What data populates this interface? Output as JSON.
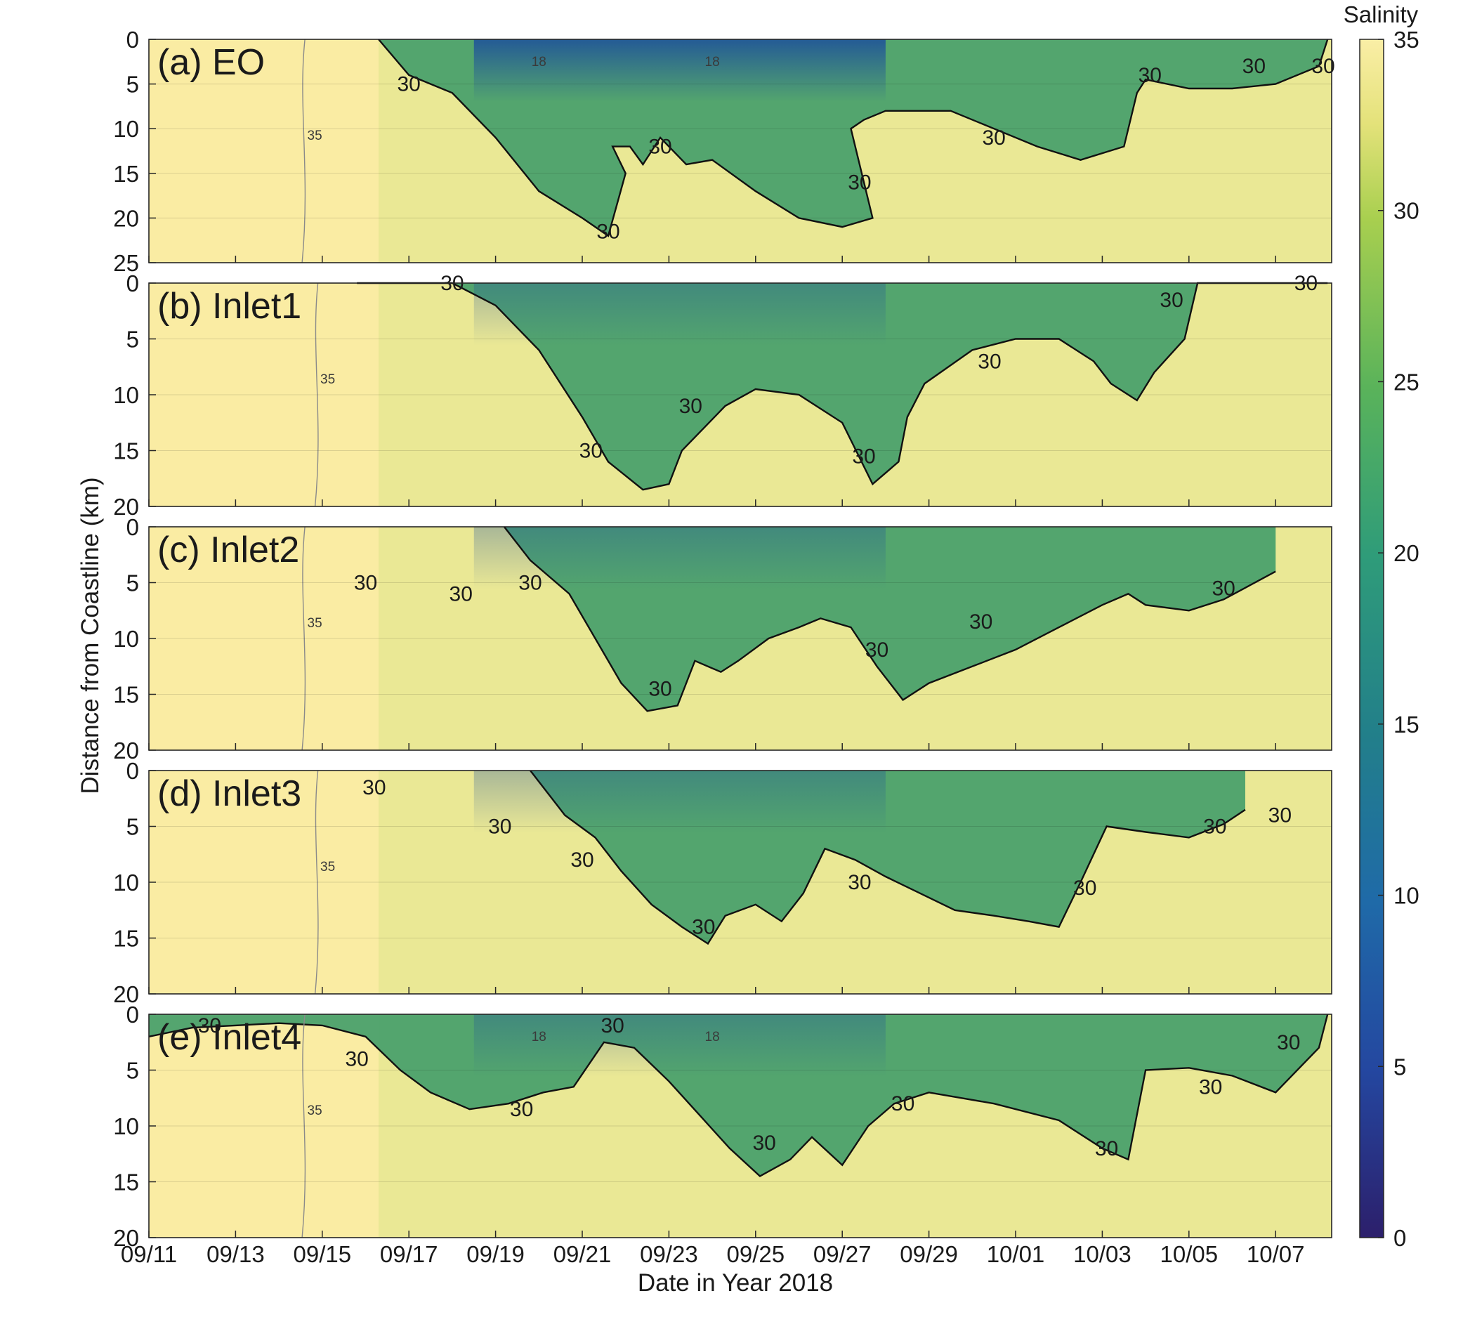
{
  "chart_data": {
    "type": "heatmap",
    "xlabel": "Date in Year 2018",
    "ylabel": "Distance from Coastline (km)",
    "x_ticks": [
      "09/11",
      "09/13",
      "09/15",
      "09/17",
      "09/19",
      "09/21",
      "09/23",
      "09/25",
      "09/27",
      "09/29",
      "10/01",
      "10/03",
      "10/05",
      "10/07"
    ],
    "x_range_days": [
      0,
      27.2
    ],
    "colorbar": {
      "title": "Salinity",
      "range": [
        0,
        35
      ],
      "ticks": [
        "0",
        "5",
        "10",
        "15",
        "20",
        "25",
        "30",
        "35"
      ],
      "colormap": "parula-like",
      "colors": [
        "#2c1f6b",
        "#2447a0",
        "#1f6aa8",
        "#227f8a",
        "#2f9c79",
        "#5ab35a",
        "#a8cf4f",
        "#e4e27a",
        "#faeea6"
      ]
    },
    "contour_levels": [
      "18",
      "30",
      "35"
    ],
    "panels": [
      {
        "title": "(a) EO",
        "ylim": [
          0,
          25
        ],
        "yticks": [
          "0",
          "5",
          "10",
          "15",
          "20",
          "25"
        ],
        "contour30_depth_by_day": [
          [
            5.3,
            0
          ],
          [
            6,
            4
          ],
          [
            7,
            6
          ],
          [
            8,
            11
          ],
          [
            9,
            17
          ],
          [
            10,
            20
          ],
          [
            10.6,
            22
          ],
          [
            11,
            15
          ],
          [
            10.7,
            12
          ],
          [
            11.1,
            12
          ],
          [
            11.4,
            14
          ],
          [
            11.8,
            11
          ],
          [
            12.4,
            14
          ],
          [
            13,
            13.5
          ],
          [
            14,
            17
          ],
          [
            15,
            20
          ],
          [
            16,
            21
          ],
          [
            16.7,
            20
          ],
          [
            16.2,
            10
          ],
          [
            16.5,
            9
          ],
          [
            17,
            8
          ],
          [
            18.5,
            8
          ],
          [
            19.5,
            10
          ],
          [
            20.5,
            12
          ],
          [
            21.5,
            13.5
          ],
          [
            22.5,
            12
          ],
          [
            22.8,
            6
          ],
          [
            23,
            4.5
          ],
          [
            24,
            5.5
          ],
          [
            25,
            5.5
          ],
          [
            26,
            5
          ],
          [
            27,
            3
          ],
          [
            27.2,
            0
          ]
        ]
      },
      {
        "title": "(b) Inlet1",
        "ylim": [
          0,
          20
        ],
        "yticks": [
          "0",
          "5",
          "10",
          "15",
          "20"
        ],
        "contour30_depth_by_day": [
          [
            4.8,
            0
          ],
          [
            7,
            0
          ],
          [
            8,
            2
          ],
          [
            9,
            6
          ],
          [
            10,
            12
          ],
          [
            10.6,
            16
          ],
          [
            11.4,
            18.5
          ],
          [
            12,
            18
          ],
          [
            12.3,
            15
          ],
          [
            12.8,
            13
          ],
          [
            13.3,
            11
          ],
          [
            14,
            9.5
          ],
          [
            15,
            10
          ],
          [
            16,
            12.5
          ],
          [
            16.7,
            18
          ],
          [
            17.3,
            16
          ],
          [
            17.5,
            12
          ],
          [
            17.9,
            9
          ],
          [
            19,
            6
          ],
          [
            20,
            5
          ],
          [
            21,
            5
          ],
          [
            21.8,
            7
          ],
          [
            22.2,
            9
          ],
          [
            22.8,
            10.5
          ],
          [
            23.2,
            8
          ],
          [
            23.9,
            5
          ],
          [
            24.2,
            0
          ],
          [
            27.2,
            0
          ]
        ]
      },
      {
        "title": "(c) Inlet2",
        "ylim": [
          0,
          20
        ],
        "yticks": [
          "0",
          "5",
          "10",
          "15",
          "20"
        ],
        "contour30_depth_by_day": [
          [
            8.2,
            0
          ],
          [
            8.8,
            3
          ],
          [
            9.7,
            6
          ],
          [
            10.3,
            10
          ],
          [
            10.9,
            14
          ],
          [
            11.5,
            16.5
          ],
          [
            12.2,
            16
          ],
          [
            12.6,
            12
          ],
          [
            13.2,
            13
          ],
          [
            13.6,
            12
          ],
          [
            14.3,
            10
          ],
          [
            15,
            9
          ],
          [
            15.5,
            8.2
          ],
          [
            16.2,
            9
          ],
          [
            16.8,
            12.5
          ],
          [
            17.4,
            15.5
          ],
          [
            18,
            14
          ],
          [
            19,
            12.5
          ],
          [
            20,
            11
          ],
          [
            21,
            9
          ],
          [
            22,
            7
          ],
          [
            22.6,
            6
          ],
          [
            23,
            7
          ],
          [
            24,
            7.5
          ],
          [
            24.8,
            6.5
          ],
          [
            26,
            4
          ]
        ]
      },
      {
        "title": "(d) Inlet3",
        "ylim": [
          0,
          20
        ],
        "yticks": [
          "0",
          "5",
          "10",
          "15",
          "20"
        ],
        "contour30_depth_by_day": [
          [
            8.8,
            0
          ],
          [
            9.6,
            4
          ],
          [
            10.3,
            6
          ],
          [
            10.9,
            9
          ],
          [
            11.6,
            12
          ],
          [
            12.3,
            14
          ],
          [
            12.9,
            15.5
          ],
          [
            13.3,
            13
          ],
          [
            14,
            12
          ],
          [
            14.6,
            13.5
          ],
          [
            15.1,
            11
          ],
          [
            15.6,
            7
          ],
          [
            16.3,
            8
          ],
          [
            17,
            9.5
          ],
          [
            17.8,
            11
          ],
          [
            18.6,
            12.5
          ],
          [
            19.5,
            13
          ],
          [
            20.3,
            13.5
          ],
          [
            21,
            14
          ],
          [
            21.5,
            10
          ],
          [
            22.1,
            5
          ],
          [
            23,
            5.5
          ],
          [
            24,
            6
          ],
          [
            24.8,
            4.8
          ],
          [
            25.3,
            3.5
          ]
        ]
      },
      {
        "title": "(e) Inlet4",
        "ylim": [
          0,
          20
        ],
        "yticks": [
          "0",
          "5",
          "10",
          "15",
          "20"
        ],
        "contour30_depth_by_day": [
          [
            0,
            2
          ],
          [
            1,
            1.2
          ],
          [
            2,
            1
          ],
          [
            3,
            0.8
          ],
          [
            4,
            1
          ],
          [
            5,
            2
          ],
          [
            5.8,
            5
          ],
          [
            6.5,
            7
          ],
          [
            7.4,
            8.5
          ],
          [
            8.3,
            8
          ],
          [
            9.1,
            7
          ],
          [
            9.8,
            6.5
          ],
          [
            10.5,
            2.5
          ],
          [
            11.2,
            3
          ],
          [
            12,
            6
          ],
          [
            12.7,
            9
          ],
          [
            13.4,
            12
          ],
          [
            14.1,
            14.5
          ],
          [
            14.8,
            13
          ],
          [
            15.3,
            11
          ],
          [
            16,
            13.5
          ],
          [
            16.6,
            10
          ],
          [
            17.2,
            8
          ],
          [
            18,
            7
          ],
          [
            19.5,
            8
          ],
          [
            21,
            9.5
          ],
          [
            22,
            12
          ],
          [
            22.6,
            13
          ],
          [
            23,
            5
          ],
          [
            24,
            4.8
          ],
          [
            25,
            5.5
          ],
          [
            26,
            7
          ],
          [
            27,
            3
          ],
          [
            27.2,
            0
          ]
        ]
      }
    ]
  }
}
